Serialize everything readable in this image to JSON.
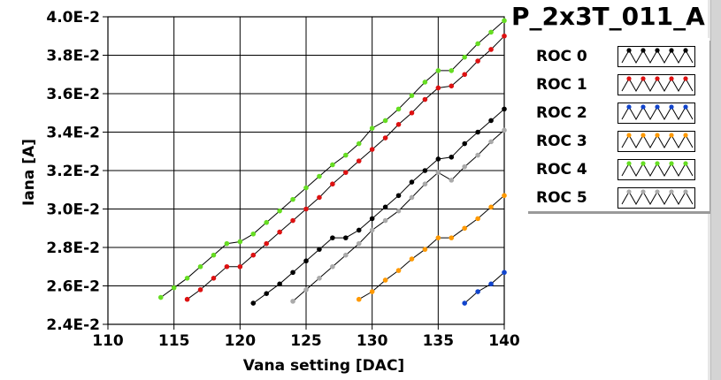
{
  "chart_data": {
    "type": "line",
    "title": "P_2x3T_011_A",
    "xlabel": "Vana setting [DAC]",
    "ylabel": "Iana [A]",
    "xlim": [
      110,
      140
    ],
    "ylim": [
      0.024,
      0.04
    ],
    "xticks": [
      110,
      115,
      120,
      125,
      130,
      135,
      140
    ],
    "xtick_labels": [
      "110",
      "115",
      "120",
      "125",
      "130",
      "135",
      "140"
    ],
    "yticks": [
      0.024,
      0.026,
      0.028,
      0.03,
      0.032,
      0.034,
      0.036,
      0.038,
      0.04
    ],
    "ytick_labels": [
      "2.4E-2",
      "2.6E-2",
      "2.8E-2",
      "3.0E-2",
      "3.2E-2",
      "3.4E-2",
      "3.6E-2",
      "3.8E-2",
      "4.0E-2"
    ],
    "grid": true,
    "legend_position": "right",
    "series": [
      {
        "name": "ROC 0",
        "color": "#000000",
        "points": [
          [
            121,
            0.0251
          ],
          [
            122,
            0.0256
          ],
          [
            123,
            0.0261
          ],
          [
            124,
            0.0267
          ],
          [
            125,
            0.0273
          ],
          [
            126,
            0.0279
          ],
          [
            127,
            0.0285
          ],
          [
            128,
            0.0285
          ],
          [
            129,
            0.0289
          ],
          [
            130,
            0.0295
          ],
          [
            131,
            0.0301
          ],
          [
            132,
            0.0307
          ],
          [
            133,
            0.0314
          ],
          [
            134,
            0.032
          ],
          [
            135,
            0.0326
          ],
          [
            136,
            0.0327
          ],
          [
            137,
            0.0334
          ],
          [
            138,
            0.034
          ],
          [
            139,
            0.0346
          ],
          [
            140,
            0.0352
          ]
        ]
      },
      {
        "name": "ROC 1",
        "color": "#dd1111",
        "points": [
          [
            116,
            0.0253
          ],
          [
            117,
            0.0258
          ],
          [
            118,
            0.0264
          ],
          [
            119,
            0.027
          ],
          [
            120,
            0.027
          ],
          [
            121,
            0.0276
          ],
          [
            122,
            0.0282
          ],
          [
            123,
            0.0288
          ],
          [
            124,
            0.0294
          ],
          [
            125,
            0.03
          ],
          [
            126,
            0.0306
          ],
          [
            127,
            0.0313
          ],
          [
            128,
            0.0319
          ],
          [
            129,
            0.0325
          ],
          [
            130,
            0.0331
          ],
          [
            131,
            0.0337
          ],
          [
            132,
            0.0344
          ],
          [
            133,
            0.035
          ],
          [
            134,
            0.0357
          ],
          [
            135,
            0.0363
          ],
          [
            136,
            0.0364
          ],
          [
            137,
            0.037
          ],
          [
            138,
            0.0377
          ],
          [
            139,
            0.0383
          ],
          [
            140,
            0.039
          ]
        ]
      },
      {
        "name": "ROC 2",
        "color": "#1144cc",
        "points": [
          [
            137,
            0.0251
          ],
          [
            138,
            0.0257
          ],
          [
            139,
            0.0261
          ],
          [
            140,
            0.0267
          ]
        ]
      },
      {
        "name": "ROC 3",
        "color": "#ff9900",
        "points": [
          [
            129,
            0.0253
          ],
          [
            130,
            0.0257
          ],
          [
            131,
            0.0263
          ],
          [
            132,
            0.0268
          ],
          [
            133,
            0.0274
          ],
          [
            134,
            0.0279
          ],
          [
            135,
            0.0285
          ],
          [
            136,
            0.0285
          ],
          [
            137,
            0.029
          ],
          [
            138,
            0.0295
          ],
          [
            139,
            0.0301
          ],
          [
            140,
            0.0307
          ]
        ]
      },
      {
        "name": "ROC 4",
        "color": "#66dd22",
        "points": [
          [
            114,
            0.0254
          ],
          [
            115,
            0.0259
          ],
          [
            116,
            0.0264
          ],
          [
            117,
            0.027
          ],
          [
            118,
            0.0276
          ],
          [
            119,
            0.0282
          ],
          [
            120,
            0.0283
          ],
          [
            121,
            0.0287
          ],
          [
            122,
            0.0293
          ],
          [
            123,
            0.0299
          ],
          [
            124,
            0.0305
          ],
          [
            125,
            0.0311
          ],
          [
            126,
            0.0317
          ],
          [
            127,
            0.0323
          ],
          [
            128,
            0.0328
          ],
          [
            129,
            0.0334
          ],
          [
            130,
            0.0342
          ],
          [
            131,
            0.0346
          ],
          [
            132,
            0.0352
          ],
          [
            133,
            0.0359
          ],
          [
            134,
            0.0366
          ],
          [
            135,
            0.0372
          ],
          [
            136,
            0.0372
          ],
          [
            137,
            0.0379
          ],
          [
            138,
            0.0386
          ],
          [
            139,
            0.0392
          ],
          [
            140,
            0.0398
          ]
        ]
      },
      {
        "name": "ROC 5",
        "color": "#aaaaaa",
        "points": [
          [
            124,
            0.0252
          ],
          [
            125,
            0.0258
          ],
          [
            126,
            0.0264
          ],
          [
            127,
            0.027
          ],
          [
            128,
            0.0276
          ],
          [
            129,
            0.0282
          ],
          [
            130,
            0.0289
          ],
          [
            131,
            0.0294
          ],
          [
            132,
            0.0299
          ],
          [
            133,
            0.0306
          ],
          [
            134,
            0.0313
          ],
          [
            135,
            0.0319
          ],
          [
            136,
            0.0315
          ],
          [
            137,
            0.0322
          ],
          [
            138,
            0.0328
          ],
          [
            139,
            0.0335
          ],
          [
            140,
            0.0341
          ]
        ]
      }
    ]
  }
}
